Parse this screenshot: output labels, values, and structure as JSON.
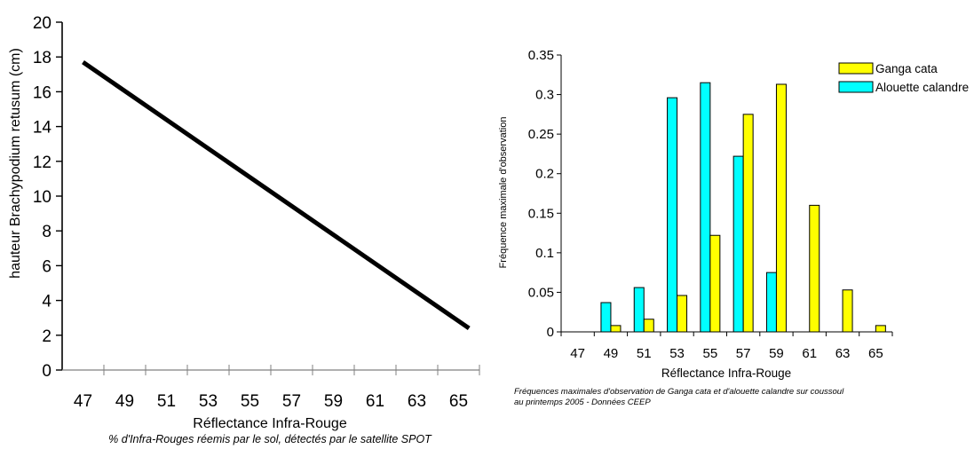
{
  "colors": {
    "line": "#000000",
    "ganga": "#ffff00",
    "alouette": "#00ffff",
    "axis": "#000000",
    "tick_minor": "#808080"
  },
  "chart_data": [
    {
      "type": "line",
      "title": "",
      "xlabel": "Réflectance Infra-Rouge",
      "subtitle": "% d'Infra-Rouges réemis par le sol, détectés par le satellite SPOT",
      "ylabel": "hauteur Brachypodium retusum (cm)",
      "xticks": [
        "47",
        "49",
        "51",
        "53",
        "55",
        "57",
        "59",
        "61",
        "63",
        "65"
      ],
      "yticks": [
        "0",
        "2",
        "4",
        "6",
        "8",
        "10",
        "12",
        "14",
        "16",
        "18",
        "20"
      ],
      "xlim": [
        46,
        66
      ],
      "ylim": [
        0,
        20
      ],
      "grid": false,
      "series": [
        {
          "x": [
            47,
            65.5
          ],
          "y": [
            17.7,
            2.4
          ]
        }
      ]
    },
    {
      "type": "bar",
      "title": "",
      "xlabel": "Réflectance Infra-Rouge",
      "ylabel": "Fréquence maximale d'observation",
      "caption": "Fréquences maximales d'observation de Ganga cata et d'alouette calandre sur coussoul au printemps 2005 - Données CEEP",
      "categories": [
        "47",
        "49",
        "51",
        "53",
        "55",
        "57",
        "59",
        "61",
        "63",
        "65"
      ],
      "yticks": [
        "0",
        "0.05",
        "0.1",
        "0.15",
        "0.2",
        "0.25",
        "0.3",
        "0.35"
      ],
      "ylim": [
        0,
        0.35
      ],
      "grid": false,
      "legend_position": "top-right",
      "series": [
        {
          "name": "Ganga cata",
          "values": [
            0,
            0.008,
            0.016,
            0.046,
            0.122,
            0.275,
            0.313,
            0.16,
            0.053,
            0.008
          ]
        },
        {
          "name": "Alouette calandre",
          "values": [
            0,
            0.037,
            0.056,
            0.296,
            0.315,
            0.222,
            0.075,
            0,
            0,
            0
          ]
        }
      ]
    }
  ]
}
